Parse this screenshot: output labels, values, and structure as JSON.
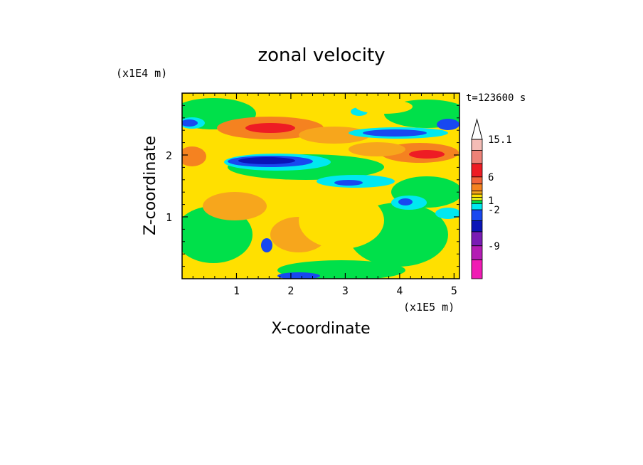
{
  "chart_data": {
    "type": "heatmap",
    "title": "zonal velocity",
    "xlabel": "X-coordinate",
    "ylabel": "Z-coordinate",
    "x_unit": "(x1E5 m)",
    "y_unit": "(x1E4 m)",
    "time_label": "t=123600 s",
    "x_ticks": [
      "1",
      "2",
      "3",
      "4",
      "5"
    ],
    "x_tick_values": [
      1,
      2,
      3,
      4,
      5
    ],
    "y_ticks": [
      "1",
      "2"
    ],
    "y_tick_values": [
      1,
      2
    ],
    "xlim": [
      0,
      5.1
    ],
    "ylim": [
      0,
      3.0
    ],
    "colorbar": {
      "levels_top_to_bottom": [
        {
          "color": "#f4bcb6"
        },
        {
          "color": "#ee8278"
        },
        {
          "color": "#ee1c24"
        },
        {
          "color": "#f2643a"
        },
        {
          "color": "#f58220"
        },
        {
          "color": "#f7a61c"
        },
        {
          "color": "#ffe000"
        },
        {
          "color": "#e8f020"
        },
        {
          "color": "#00e04a"
        },
        {
          "color": "#00e8f0"
        },
        {
          "color": "#1848f0"
        },
        {
          "color": "#0a14b8"
        },
        {
          "color": "#7a1cb4"
        },
        {
          "color": "#b41cb4"
        },
        {
          "color": "#f01cb4"
        }
      ],
      "tick_labels": [
        {
          "label": "15.1",
          "value": 15.1
        },
        {
          "label": "6",
          "value": 6
        },
        {
          "label": "1",
          "value": 1
        },
        {
          "label": "-2",
          "value": -2
        },
        {
          "label": "-9",
          "value": -9
        }
      ],
      "overflow_arrow": "top"
    },
    "field_regions_description": "contoured velocity field with jet bands near z=2.0-2.5"
  }
}
